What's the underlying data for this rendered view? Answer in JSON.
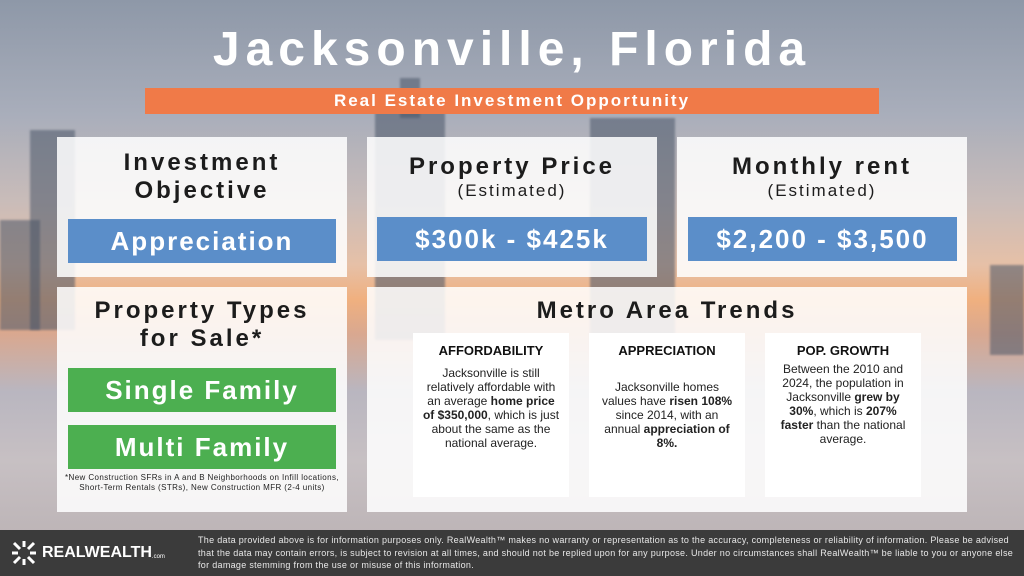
{
  "title": "Jacksonville, Florida",
  "banner": "Real Estate Investment Opportunity",
  "objective": {
    "heading_line1": "Investment",
    "heading_line2": "Objective",
    "value": "Appreciation"
  },
  "price": {
    "heading": "Property Price",
    "sub": "(Estimated)",
    "value": "$300k - $425k"
  },
  "rent": {
    "heading": "Monthly rent",
    "sub": "(Estimated)",
    "value": "$2,200 - $3,500"
  },
  "types": {
    "heading_line1": "Property Types",
    "heading_line2": "for Sale*",
    "items": [
      "Single Family",
      "Multi Family"
    ],
    "note": "*New Construction SFRs in A and B Neighborhoods on Infill locations, Short-Term Rentals (STRs), New Construction MFR (2-4 units)"
  },
  "trends": {
    "heading": "Metro Area Trends",
    "cards": [
      {
        "title": "AFFORDABILITY",
        "segments": [
          {
            "t": "Jacksonville is still relatively affordable with an average "
          },
          {
            "t": "home price of $350,000",
            "b": true
          },
          {
            "t": ", which is just about the same as the national average."
          }
        ]
      },
      {
        "title": "APPRECIATION",
        "segments": [
          {
            "t": "Jacksonville homes values have "
          },
          {
            "t": "risen 108%",
            "b": true
          },
          {
            "t": " since 2014, with an annual "
          },
          {
            "t": "appreciation of 8%.",
            "b": true
          }
        ]
      },
      {
        "title": "POP. GROWTH",
        "segments": [
          {
            "t": "Between the 2010 and 2024, the population in Jacksonville "
          },
          {
            "t": "grew by 30%",
            "b": true
          },
          {
            "t": ", which is "
          },
          {
            "t": "207% faster",
            "b": true
          },
          {
            "t": " than the national average."
          }
        ]
      }
    ]
  },
  "footer": {
    "logo": "REALWEALTH",
    "logo_suffix": ".com",
    "disclaimer": "The data provided above is for information purposes only. RealWealth™ makes no warranty or representation as to the accuracy, completeness or reliability of information. Please be advised that the data may contain errors, is subject to revision at all times, and should not be replied upon for any purpose. Under no circumstances shall RealWealth™ be liable to you or anyone else for damage stemming from the use or misuse of this information."
  },
  "colors": {
    "banner": "#f07a48",
    "blue": "#5b8ec9",
    "green": "#4caf50",
    "footer": "#3b3b3b"
  }
}
